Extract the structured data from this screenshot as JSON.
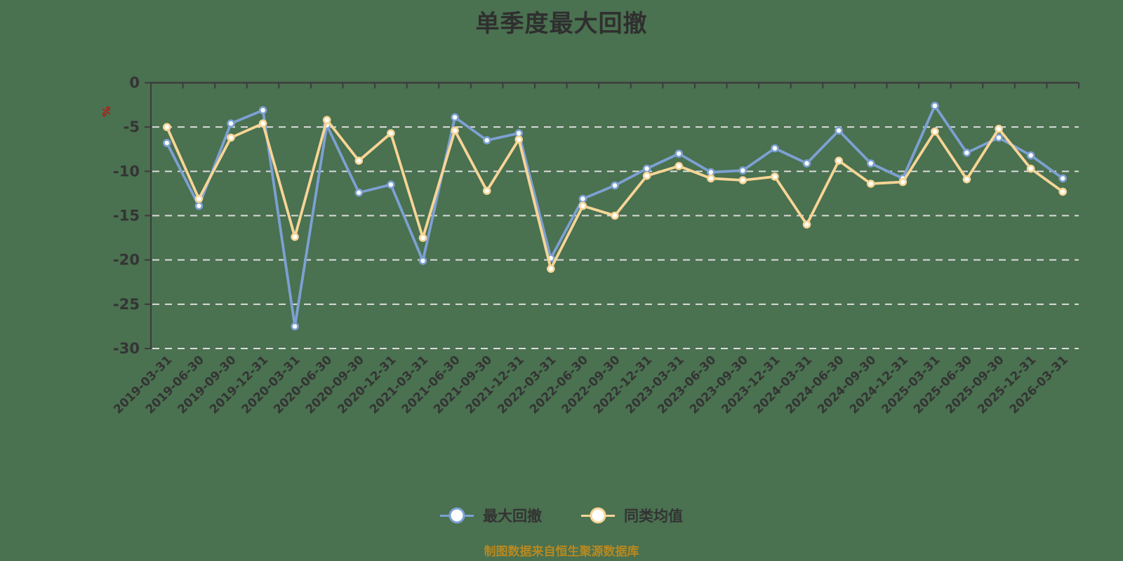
{
  "title": "单季度最大回撤",
  "caption": "制图数据来自恒生聚源数据库",
  "y_axis": {
    "unit": "%",
    "ticks": [
      0,
      -5,
      -10,
      -15,
      -20,
      -25,
      -30
    ]
  },
  "legend": [
    {
      "label": "最大回撤",
      "color": "#7DA0D2"
    },
    {
      "label": "同类均值",
      "color": "#F7D596"
    }
  ],
  "colors": {
    "background": "#4A7150",
    "text": "#343434",
    "axis": "#3C3C3C",
    "grid": "#DCDCDC",
    "unit": "#C40F0F",
    "caption": "#B8891F",
    "marker_fill": "#FFFFFF"
  },
  "chart_data": {
    "type": "line",
    "title": "单季度最大回撤",
    "xlabel": "",
    "ylabel": "%",
    "ylim": [
      -30,
      0
    ],
    "grid": "horizontal-dashed-white",
    "legend_position": "bottom",
    "x": [
      "2019-03-31",
      "2019-06-30",
      "2019-09-30",
      "2019-12-31",
      "2020-03-31",
      "2020-06-30",
      "2020-09-30",
      "2020-12-31",
      "2021-03-31",
      "2021-06-30",
      "2021-09-30",
      "2021-12-31",
      "2022-03-31",
      "2022-06-30",
      "2022-09-30",
      "2022-12-31",
      "2023-03-31",
      "2023-06-30",
      "2023-09-30",
      "2023-12-31",
      "2024-03-31",
      "2024-06-30",
      "2024-09-30",
      "2024-12-31",
      "2025-03-31",
      "2025-06-30",
      "2025-09-30",
      "2025-12-31",
      "2026-03-31"
    ],
    "series": [
      {
        "name": "最大回撤",
        "color": "#7DA0D2",
        "values": [
          -6.8,
          -13.9,
          -4.6,
          -3.1,
          -27.5,
          -4.8,
          -12.4,
          -11.5,
          -20.1,
          -3.9,
          -6.5,
          -5.7,
          -19.8,
          -13.1,
          -11.6,
          -9.7,
          -8.0,
          -10.1,
          -9.9,
          -7.4,
          -9.1,
          -5.4,
          -9.1,
          -10.8,
          -2.6,
          -7.9,
          -6.2,
          -8.2,
          -10.8
        ]
      },
      {
        "name": "同类均值",
        "color": "#F7D596",
        "values": [
          -5.0,
          -13.1,
          -6.2,
          -4.6,
          -17.4,
          -4.2,
          -8.8,
          -5.7,
          -17.5,
          -5.4,
          -12.2,
          -6.4,
          -21.0,
          -13.9,
          -15.0,
          -10.5,
          -9.4,
          -10.8,
          -11.0,
          -10.6,
          -16.0,
          -8.8,
          -11.4,
          -11.2,
          -5.5,
          -10.9,
          -5.2,
          -9.7,
          -12.3
        ]
      }
    ]
  }
}
